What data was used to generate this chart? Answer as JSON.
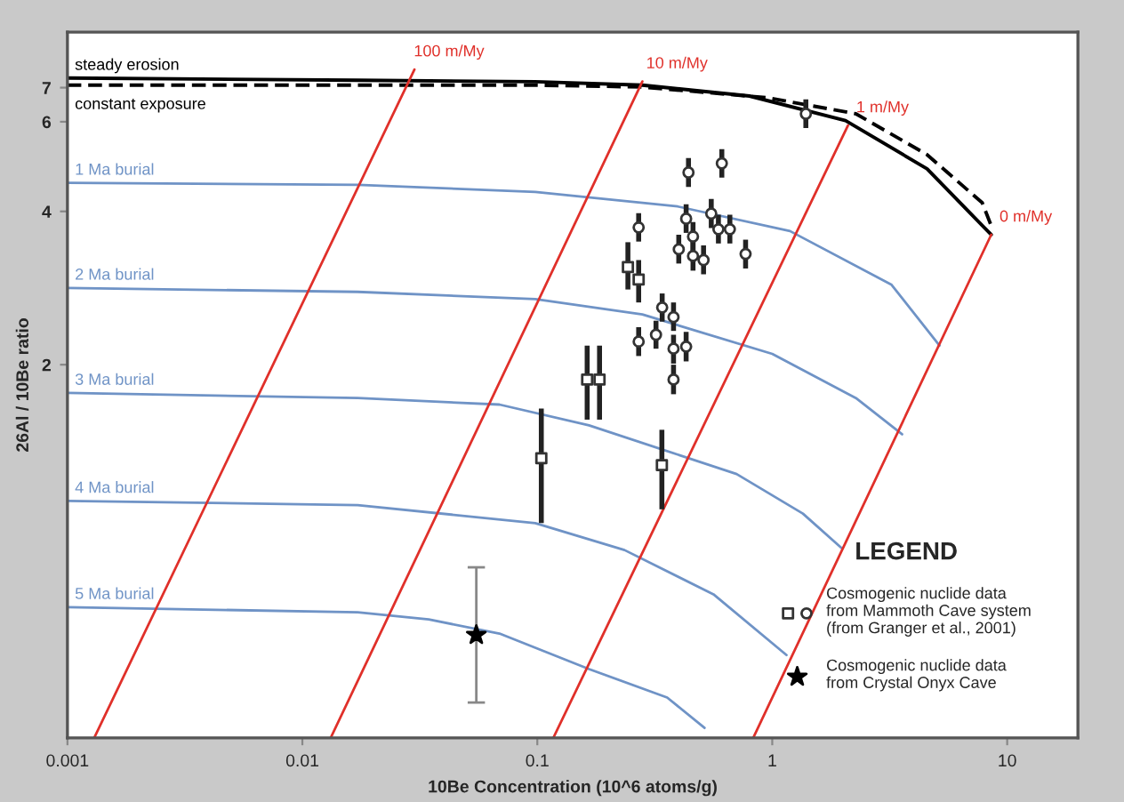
{
  "chart_data": {
    "type": "line",
    "xlabel": "10Be Concentration (10^6 atoms/g)",
    "ylabel": "26Al / 10Be ratio",
    "legend_title": "LEGEND",
    "log": "xy",
    "grid": false,
    "legend": "lower right",
    "xlim": [
      0.001,
      20
    ],
    "xticks": [
      0.001,
      0.01,
      0.1,
      1,
      10
    ],
    "ylim": [
      0.37,
      9
    ],
    "yticks": [
      2,
      4,
      6,
      7
    ],
    "series": [
      {
        "name": "steady erosion",
        "color": "#000000",
        "line_style": "solid",
        "marker": "none",
        "x": [
          0.001,
          0.0172,
          0.098,
          0.28,
          0.8,
          2.05,
          4.56,
          8.55
        ],
        "values": [
          7.31,
          7.24,
          7.19,
          7.08,
          6.74,
          6.03,
          4.85,
          3.6
        ]
      },
      {
        "name": "constant exposure",
        "color": "#000000",
        "line_style": "dashed",
        "marker": "none",
        "x": [
          0.001,
          0.098,
          0.28,
          0.95,
          2.27,
          4.56,
          7.83,
          8.55
        ],
        "values": [
          7.08,
          7.08,
          7.02,
          6.69,
          6.22,
          5.17,
          4.16,
          3.75
        ]
      },
      {
        "name": "1 Ma burial",
        "color": "#6f93c6",
        "line_style": "solid",
        "marker": "none",
        "x": [
          0.001,
          0.0172,
          0.098,
          0.396,
          1.19,
          3.22,
          5.15
        ],
        "values": [
          4.55,
          4.51,
          4.37,
          4.09,
          3.66,
          2.87,
          2.18
        ]
      },
      {
        "name": "2 Ma burial",
        "color": "#6f93c6",
        "line_style": "solid",
        "marker": "none",
        "x": [
          0.001,
          0.0172,
          0.098,
          0.28,
          1.0,
          2.27,
          3.57
        ],
        "values": [
          2.83,
          2.78,
          2.69,
          2.51,
          2.1,
          1.72,
          1.46
        ]
      },
      {
        "name": "3 Ma burial",
        "color": "#6f93c6",
        "line_style": "solid",
        "marker": "none",
        "x": [
          0.001,
          0.0172,
          0.069,
          0.166,
          0.705,
          1.35,
          1.97
        ],
        "values": [
          1.76,
          1.72,
          1.67,
          1.52,
          1.22,
          1.02,
          0.873
        ]
      },
      {
        "name": "4 Ma burial",
        "color": "#6f93c6",
        "line_style": "solid",
        "marker": "none",
        "x": [
          0.001,
          0.0172,
          0.098,
          0.235,
          0.562,
          1.15
        ],
        "values": [
          1.08,
          1.06,
          0.977,
          0.865,
          0.708,
          0.538
        ]
      },
      {
        "name": "5 Ma burial",
        "color": "#6f93c6",
        "line_style": "solid",
        "marker": "none",
        "x": [
          0.001,
          0.0172,
          0.0345,
          0.069,
          0.166,
          0.357,
          0.515
        ],
        "values": [
          0.668,
          0.653,
          0.632,
          0.593,
          0.505,
          0.444,
          0.387
        ]
      },
      {
        "name": "100 m/My",
        "color": "#e0302a",
        "line_style": "solid",
        "marker": "none",
        "x": [
          0.03,
          0.0013
        ],
        "values": [
          7.6,
          0.37
        ]
      },
      {
        "name": "10 m/My",
        "color": "#e0302a",
        "line_style": "solid",
        "marker": "none",
        "x": [
          0.28,
          0.0132
        ],
        "values": [
          7.2,
          0.37
        ]
      },
      {
        "name": "1 m/My",
        "color": "#e0302a",
        "line_style": "solid",
        "marker": "none",
        "x": [
          2.1,
          0.117
        ],
        "values": [
          5.9,
          0.37
        ]
      },
      {
        "name": "0 m/My",
        "color": "#e0302a",
        "line_style": "solid",
        "marker": "none",
        "x": [
          8.55,
          0.83
        ],
        "values": [
          3.6,
          0.37
        ]
      },
      {
        "type": "scatter",
        "name": "Cosmogenic nuclide data\nfrom Mammoth Cave system\n(from Granger et al., 2001)",
        "color": "#333333",
        "marker": "square",
        "x": [
          0.163,
          0.184,
          0.104,
          0.339,
          0.243,
          0.27
        ],
        "values": [
          1.87,
          1.87,
          1.31,
          1.27,
          3.11,
          2.94
        ],
        "errors": [
          [
            1.56,
            2.18
          ],
          [
            1.56,
            2.18
          ],
          [
            0.977,
            1.64
          ],
          [
            1.04,
            1.49
          ],
          [
            2.81,
            3.48
          ],
          [
            2.65,
            3.21
          ]
        ]
      },
      {
        "type": "scatter",
        "color": "#333333",
        "marker": "circle",
        "x": [
          0.44,
          0.61,
          0.27,
          0.43,
          0.46,
          0.55,
          0.59,
          0.66,
          0.4,
          0.46,
          0.51,
          0.77,
          0.34,
          0.38,
          0.32,
          0.27,
          0.38,
          0.43,
          0.38,
          1.39
        ],
        "values": [
          4.77,
          4.97,
          3.72,
          3.87,
          3.57,
          3.96,
          3.69,
          3.69,
          3.37,
          3.27,
          3.21,
          3.3,
          2.59,
          2.48,
          2.29,
          2.22,
          2.15,
          2.17,
          1.87,
          6.22
        ],
        "errors": [
          [
            4.47,
            5.09
          ],
          [
            4.66,
            5.3
          ],
          [
            3.49,
            3.97
          ],
          [
            3.63,
            4.13
          ],
          [
            3.35,
            3.81
          ],
          [
            3.71,
            4.23
          ],
          [
            3.46,
            3.94
          ],
          [
            3.46,
            3.94
          ],
          [
            3.16,
            3.6
          ],
          [
            3.06,
            3.49
          ],
          [
            3.01,
            3.43
          ],
          [
            3.09,
            3.52
          ],
          [
            2.43,
            2.76
          ],
          [
            2.33,
            2.65
          ],
          [
            2.15,
            2.44
          ],
          [
            2.08,
            2.37
          ],
          [
            2.01,
            2.29
          ],
          [
            2.03,
            2.32
          ],
          [
            1.75,
            2.0
          ],
          [
            5.83,
            6.64
          ]
        ]
      },
      {
        "type": "scatter",
        "name": "Cosmogenic nuclide data\nfrom Crystal Onyx Cave",
        "color": "#000000",
        "marker": "star",
        "x": [
          0.055
        ],
        "values": [
          0.589
        ],
        "errors": [
          [
            0.434,
            0.8
          ]
        ]
      }
    ]
  }
}
